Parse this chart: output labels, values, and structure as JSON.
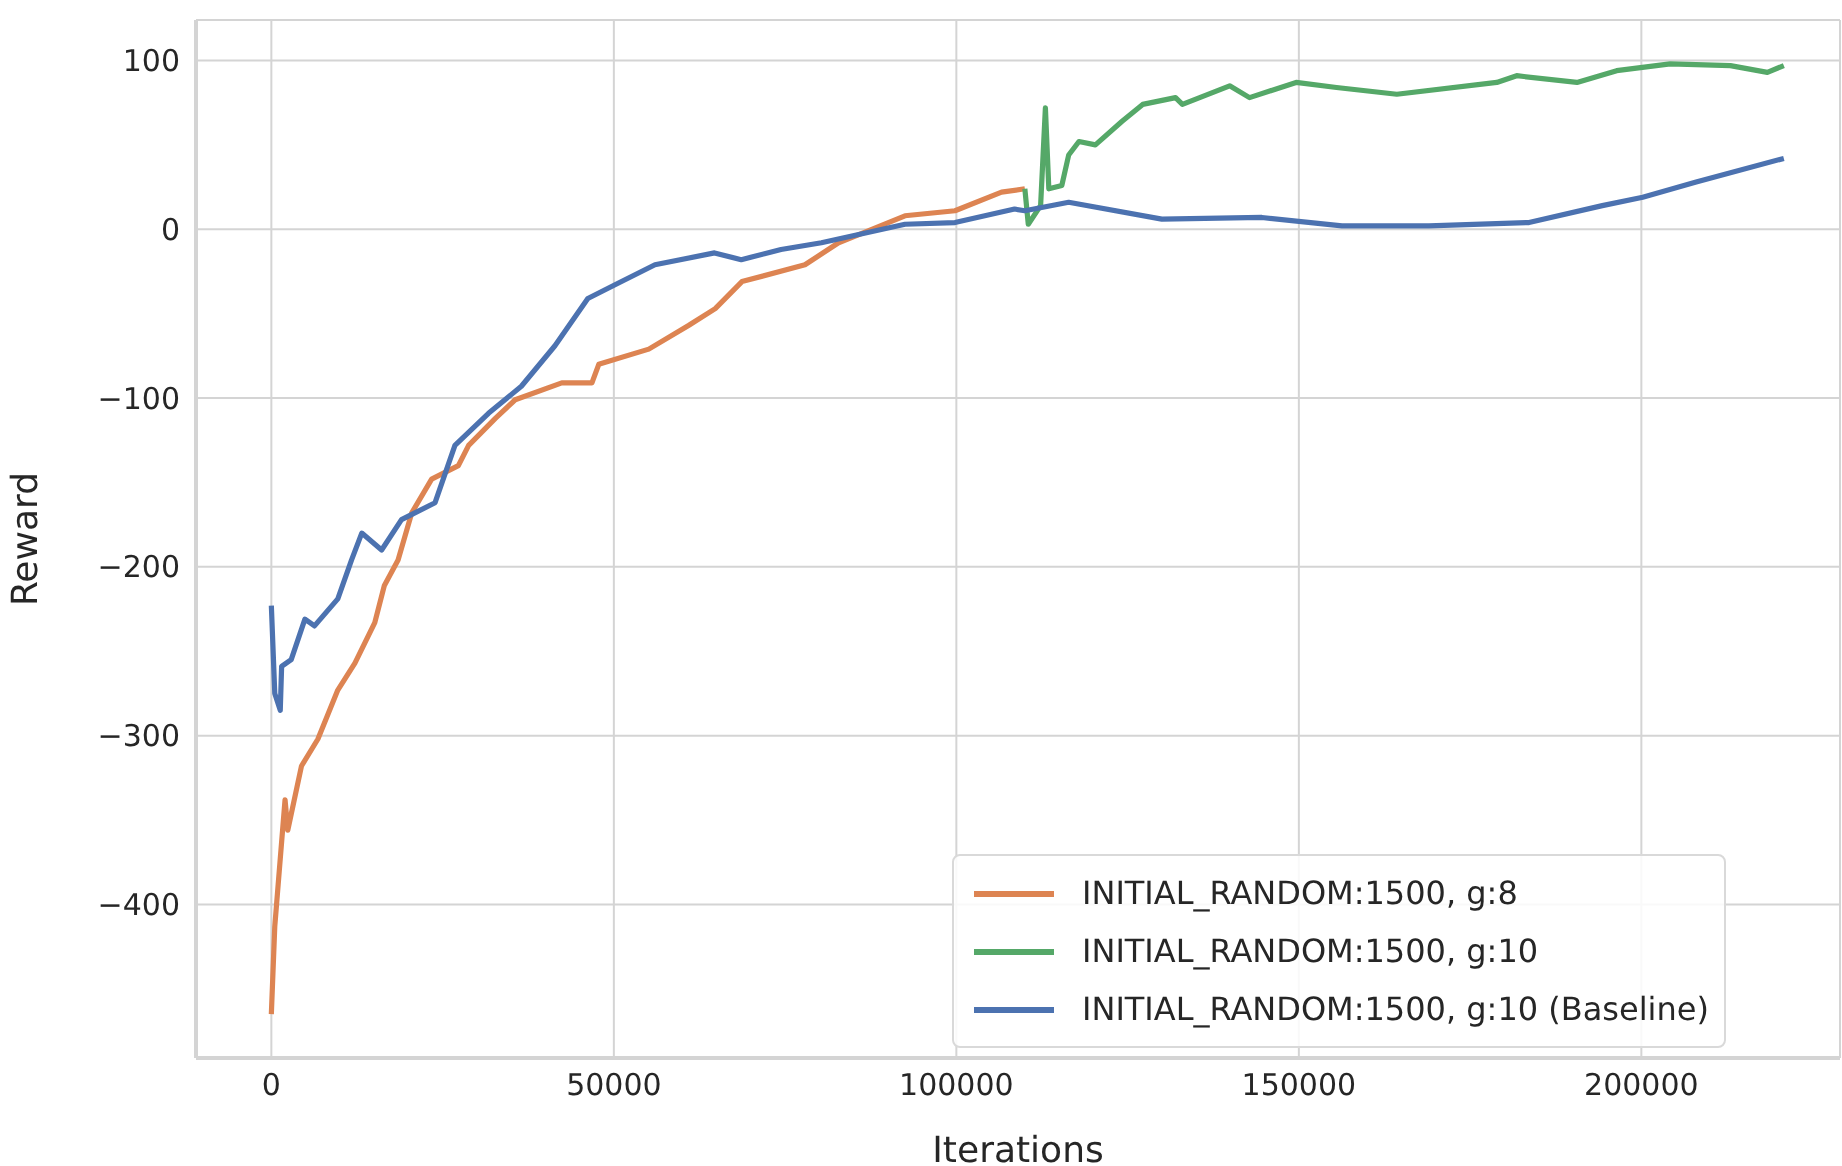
{
  "chart_data": {
    "type": "line",
    "xlabel": "Iterations",
    "ylabel": "Reward",
    "xlim": [
      -11000,
      229000
    ],
    "xticks": [
      0,
      50000,
      100000,
      150000,
      200000
    ],
    "ylim": [
      -491,
      124
    ],
    "yticks": [
      -400,
      -300,
      -200,
      -100,
      0,
      100
    ],
    "grid": true,
    "legend": "bottom right",
    "line_style": "solid",
    "marker": "none",
    "series": [
      {
        "name": "INITIAL_RANDOM:1500, g:8",
        "color": "#dd8452",
        "x": [
          0,
          500,
          1000,
          2000,
          2400,
          4400,
          6800,
          9700,
          12200,
          15100,
          16500,
          18500,
          20500,
          23400,
          27300,
          28800,
          32700,
          35600,
          42400,
          46800,
          47800,
          55100,
          60900,
          64800,
          68700,
          77900,
          82800,
          92500,
          99800,
          106600,
          110000
        ],
        "values": [
          -465,
          -413,
          -388,
          -338,
          -356,
          -318,
          -302,
          -273,
          -257,
          -233,
          -211,
          -196,
          -168,
          -148,
          -140,
          -128,
          -112,
          -101,
          -91,
          -91,
          -80,
          -71,
          -57,
          -47,
          -31,
          -21,
          -8,
          8,
          11,
          22,
          24
        ]
      },
      {
        "name": "INITIAL_RANDOM:1500, g:10",
        "color": "#55a868",
        "x": [
          110000,
          110500,
          112300,
          113000,
          113500,
          115400,
          116400,
          117900,
          120300,
          124200,
          127200,
          132000,
          133000,
          139900,
          142800,
          149600,
          155500,
          164300,
          178900,
          181800,
          190600,
          196400,
          204200,
          213000,
          218400,
          220800
        ],
        "values": [
          24,
          3,
          14,
          72,
          24,
          26,
          44,
          52,
          50,
          64,
          74,
          78,
          74,
          85,
          78,
          87,
          84,
          80,
          87,
          91,
          87,
          94,
          98,
          97,
          93,
          97
        ]
      },
      {
        "name": "INITIAL_RANDOM:1500, g:10 (Baseline)",
        "color": "#4c72b0",
        "x": [
          0,
          500,
          1300,
          1500,
          2900,
          4900,
          6300,
          9700,
          11700,
          13200,
          16100,
          19000,
          23900,
          26800,
          31700,
          36500,
          41400,
          46200,
          50100,
          56000,
          64700,
          68600,
          74400,
          80300,
          92500,
          99800,
          108500,
          110000,
          116400,
          130000,
          144600,
          156300,
          169000,
          183600,
          194300,
          200200,
          208000,
          220800
        ],
        "values": [
          -223,
          -275,
          -285,
          -259,
          -255,
          -231,
          -235,
          -219,
          -196,
          -180,
          -190,
          -172,
          -162,
          -128,
          -109,
          -93,
          -69,
          -41,
          -33,
          -21,
          -14,
          -18,
          -12,
          -8,
          3,
          4,
          12,
          11,
          16,
          6,
          7,
          2,
          2,
          4,
          14,
          19,
          28,
          42
        ]
      }
    ]
  }
}
